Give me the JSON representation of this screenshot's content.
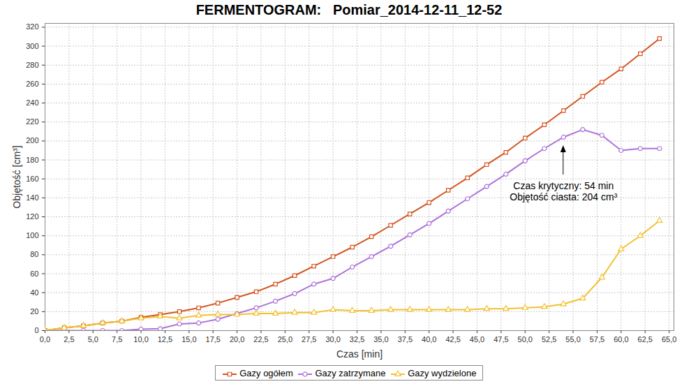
{
  "chart_data": {
    "type": "line",
    "title": "FERMENTOGRAM:   Pomiar_2014-12-11_12-52",
    "x_label": "Czas [min]",
    "y_label": "Objętość [cm³]",
    "x": [
      0,
      2,
      4,
      6,
      8,
      10,
      12,
      14,
      16,
      18,
      20,
      22,
      24,
      26,
      28,
      30,
      32,
      34,
      36,
      38,
      40,
      42,
      44,
      46,
      48,
      50,
      52,
      54,
      56,
      58,
      60,
      62,
      64
    ],
    "xlim": [
      0,
      65.5
    ],
    "xticks": [
      {
        "value": 0,
        "label": "0,0"
      },
      {
        "value": 2.5,
        "label": "2,5"
      },
      {
        "value": 5,
        "label": "5,0"
      },
      {
        "value": 7.5,
        "label": "7,5"
      },
      {
        "value": 10,
        "label": "10,0"
      },
      {
        "value": 12.5,
        "label": "12,5"
      },
      {
        "value": 15,
        "label": "15,0"
      },
      {
        "value": 17.5,
        "label": "17,5"
      },
      {
        "value": 20,
        "label": "20,0"
      },
      {
        "value": 22.5,
        "label": "22,5"
      },
      {
        "value": 25,
        "label": "25,0"
      },
      {
        "value": 27.5,
        "label": "27,5"
      },
      {
        "value": 30,
        "label": "30,0"
      },
      {
        "value": 32.5,
        "label": "32,5"
      },
      {
        "value": 35,
        "label": "35,0"
      },
      {
        "value": 37.5,
        "label": "37,5"
      },
      {
        "value": 40,
        "label": "40,0"
      },
      {
        "value": 42.5,
        "label": "42,5"
      },
      {
        "value": 45,
        "label": "45,0"
      },
      {
        "value": 47.5,
        "label": "47,5"
      },
      {
        "value": 50,
        "label": "50,0"
      },
      {
        "value": 52.5,
        "label": "52,5"
      },
      {
        "value": 55,
        "label": "55,0"
      },
      {
        "value": 57.5,
        "label": "57,5"
      },
      {
        "value": 60,
        "label": "60,0"
      },
      {
        "value": 62.5,
        "label": "62,5"
      },
      {
        "value": 65,
        "label": "65,0"
      }
    ],
    "ylim": [
      0,
      324
    ],
    "yticks": [
      0,
      20,
      40,
      60,
      80,
      100,
      120,
      140,
      160,
      180,
      200,
      220,
      240,
      260,
      280,
      300,
      320
    ],
    "grid": true,
    "legend": "bottom",
    "series": [
      {
        "name": "Gazy ogółem",
        "color": "#d4541f",
        "marker": "square",
        "values": [
          0,
          3,
          5,
          8,
          10,
          14,
          17,
          20,
          24,
          29,
          35,
          41,
          49,
          58,
          68,
          78,
          88,
          99,
          111,
          123,
          135,
          148,
          161,
          175,
          188,
          203,
          217,
          232,
          247,
          262,
          276,
          292,
          308
        ]
      },
      {
        "name": "Gazy zatrzymane",
        "color": "#ae72d9",
        "marker": "circle",
        "values": [
          0,
          0,
          0,
          0,
          0,
          1.5,
          2,
          7,
          8,
          12,
          18,
          24,
          31,
          39,
          49,
          55,
          67,
          78,
          89,
          101,
          113,
          126,
          139,
          152,
          165,
          179,
          192,
          204,
          212,
          206,
          190,
          192,
          192
        ]
      },
      {
        "name": "Gazy wydzielone",
        "color": "#f2c12e",
        "marker": "triangle",
        "values": [
          0,
          3,
          5,
          8,
          10,
          13,
          15,
          13,
          16,
          17,
          17,
          18,
          18,
          19,
          19,
          22,
          21,
          21,
          22,
          22,
          22,
          22,
          22,
          23,
          23,
          24,
          25,
          28,
          34,
          56,
          86,
          100,
          116
        ]
      }
    ],
    "annotations": [
      {
        "x": 54,
        "y": 204,
        "text": [
          "Czas krytyczny: 54 min",
          "Objętość ciasta: 204 cm³"
        ]
      }
    ]
  }
}
